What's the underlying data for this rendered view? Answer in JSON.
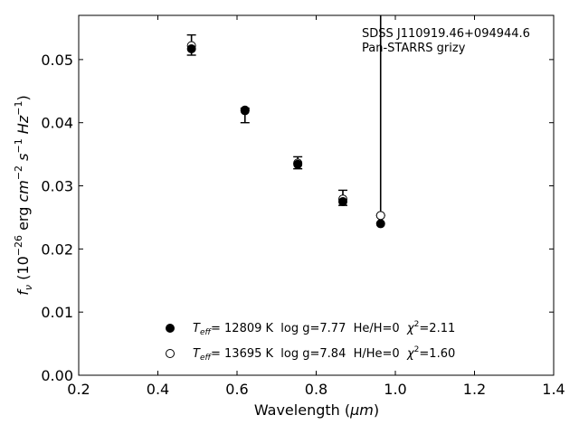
{
  "chart_data": {
    "type": "scatter",
    "xlabel_text": "Wavelength (",
    "xlabel_unit": "μm",
    "xlabel_close": ")",
    "ylabel_f": "f",
    "ylabel_sub": "ν",
    "ylabel_open": " (10",
    "ylabel_exp1": "−26",
    "ylabel_erg": " erg ",
    "ylabel_cm": "cm",
    "ylabel_exp2": "−2",
    "ylabel_s": "s",
    "ylabel_exp3": "−1",
    "ylabel_hz": "Hz",
    "ylabel_exp4": "−1",
    "ylabel_close": ")",
    "xlim": [
      0.2,
      1.4
    ],
    "ylim": [
      0.0,
      0.057
    ],
    "x_ticks": [
      {
        "value": 0.2,
        "label": "0.2"
      },
      {
        "value": 0.4,
        "label": "0.4"
      },
      {
        "value": 0.6,
        "label": "0.6"
      },
      {
        "value": 0.8,
        "label": "0.8"
      },
      {
        "value": 1.0,
        "label": "1.0"
      },
      {
        "value": 1.2,
        "label": "1.2"
      },
      {
        "value": 1.4,
        "label": "1.4"
      }
    ],
    "y_ticks": [
      {
        "value": 0.0,
        "label": "0.00"
      },
      {
        "value": 0.01,
        "label": "0.01"
      },
      {
        "value": 0.02,
        "label": "0.02"
      },
      {
        "value": 0.03,
        "label": "0.03"
      },
      {
        "value": 0.04,
        "label": "0.04"
      },
      {
        "value": 0.05,
        "label": "0.05"
      }
    ],
    "annotation": {
      "line1": "SDSS J110919.46+094944.6",
      "line2": "Pan-STARRS grizy"
    },
    "observed": [
      {
        "x": 0.4849,
        "y": 0.0522,
        "yerr_low": 0.0507,
        "yerr_high": 0.0539
      },
      {
        "x": 0.6201,
        "y": 0.042,
        "yerr_low": 0.04,
        "yerr_high": 0.0423
      },
      {
        "x": 0.7535,
        "y": 0.0336,
        "yerr_low": 0.0327,
        "yerr_high": 0.0346
      },
      {
        "x": 0.8674,
        "y": 0.0279,
        "yerr_low": 0.0269,
        "yerr_high": 0.0293
      },
      {
        "x": 0.9628,
        "y": 0.0253,
        "yerr_low": 0.0253,
        "yerr_high": 0.057
      }
    ],
    "series": [
      {
        "marker": "filled",
        "values": [
          {
            "x": 0.4849,
            "y": 0.0517
          },
          {
            "x": 0.6201,
            "y": 0.0419
          },
          {
            "x": 0.7535,
            "y": 0.0334
          },
          {
            "x": 0.8674,
            "y": 0.0275
          },
          {
            "x": 0.9628,
            "y": 0.024
          }
        ]
      },
      {
        "marker": "open",
        "values": []
      }
    ],
    "legend": {
      "placement": "lower-center",
      "entries": [
        {
          "marker": "filled",
          "teff_prefix": "T",
          "teff_sub": "eff",
          "text": "= 12809 K  log g=7.77  He/H=0  ",
          "chi_sym": "χ",
          "chi_exp": "2",
          "chi_val": "=2.11"
        },
        {
          "marker": "open",
          "teff_prefix": "T",
          "teff_sub": "eff",
          "text": "= 13695 K  log g=7.84  H/He=0  ",
          "chi_sym": "χ",
          "chi_exp": "2",
          "chi_val": "=1.60"
        }
      ]
    }
  }
}
